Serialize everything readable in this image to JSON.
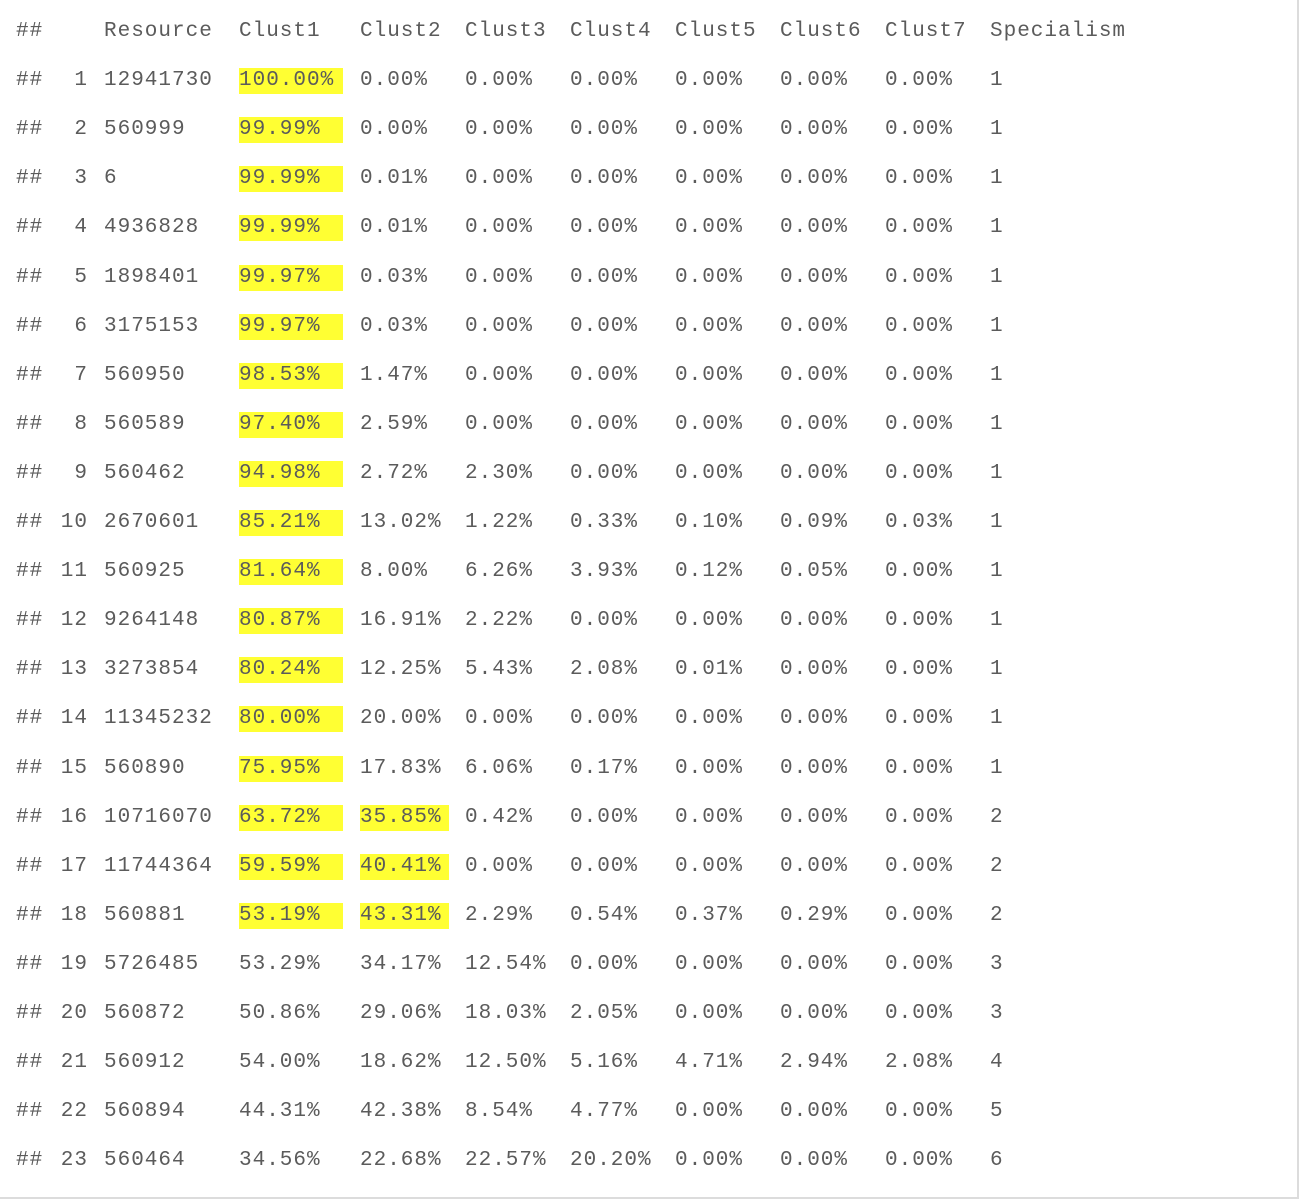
{
  "table": {
    "prefix": "##",
    "columns": [
      "Resource",
      "Clust1",
      "Clust2",
      "Clust3",
      "Clust4",
      "Clust5",
      "Clust6",
      "Clust7",
      "Specialism"
    ],
    "rows": [
      {
        "idx": "1",
        "resource": "12941730",
        "clust": [
          "100.00%",
          "0.00%",
          "0.00%",
          "0.00%",
          "0.00%",
          "0.00%",
          "0.00%"
        ],
        "specialism": "1",
        "highlight": [
          true,
          false
        ]
      },
      {
        "idx": "2",
        "resource": "560999",
        "clust": [
          "99.99%",
          "0.00%",
          "0.00%",
          "0.00%",
          "0.00%",
          "0.00%",
          "0.00%"
        ],
        "specialism": "1",
        "highlight": [
          true,
          false
        ]
      },
      {
        "idx": "3",
        "resource": "6",
        "clust": [
          "99.99%",
          "0.01%",
          "0.00%",
          "0.00%",
          "0.00%",
          "0.00%",
          "0.00%"
        ],
        "specialism": "1",
        "highlight": [
          true,
          false
        ]
      },
      {
        "idx": "4",
        "resource": "4936828",
        "clust": [
          "99.99%",
          "0.01%",
          "0.00%",
          "0.00%",
          "0.00%",
          "0.00%",
          "0.00%"
        ],
        "specialism": "1",
        "highlight": [
          true,
          false
        ]
      },
      {
        "idx": "5",
        "resource": "1898401",
        "clust": [
          "99.97%",
          "0.03%",
          "0.00%",
          "0.00%",
          "0.00%",
          "0.00%",
          "0.00%"
        ],
        "specialism": "1",
        "highlight": [
          true,
          false
        ]
      },
      {
        "idx": "6",
        "resource": "3175153",
        "clust": [
          "99.97%",
          "0.03%",
          "0.00%",
          "0.00%",
          "0.00%",
          "0.00%",
          "0.00%"
        ],
        "specialism": "1",
        "highlight": [
          true,
          false
        ]
      },
      {
        "idx": "7",
        "resource": "560950",
        "clust": [
          "98.53%",
          "1.47%",
          "0.00%",
          "0.00%",
          "0.00%",
          "0.00%",
          "0.00%"
        ],
        "specialism": "1",
        "highlight": [
          true,
          false
        ]
      },
      {
        "idx": "8",
        "resource": "560589",
        "clust": [
          "97.40%",
          "2.59%",
          "0.00%",
          "0.00%",
          "0.00%",
          "0.00%",
          "0.00%"
        ],
        "specialism": "1",
        "highlight": [
          true,
          false
        ]
      },
      {
        "idx": "9",
        "resource": "560462",
        "clust": [
          "94.98%",
          "2.72%",
          "2.30%",
          "0.00%",
          "0.00%",
          "0.00%",
          "0.00%"
        ],
        "specialism": "1",
        "highlight": [
          true,
          false
        ]
      },
      {
        "idx": "10",
        "resource": "2670601",
        "clust": [
          "85.21%",
          "13.02%",
          "1.22%",
          "0.33%",
          "0.10%",
          "0.09%",
          "0.03%"
        ],
        "specialism": "1",
        "highlight": [
          true,
          false
        ]
      },
      {
        "idx": "11",
        "resource": "560925",
        "clust": [
          "81.64%",
          "8.00%",
          "6.26%",
          "3.93%",
          "0.12%",
          "0.05%",
          "0.00%"
        ],
        "specialism": "1",
        "highlight": [
          true,
          false
        ]
      },
      {
        "idx": "12",
        "resource": "9264148",
        "clust": [
          "80.87%",
          "16.91%",
          "2.22%",
          "0.00%",
          "0.00%",
          "0.00%",
          "0.00%"
        ],
        "specialism": "1",
        "highlight": [
          true,
          false
        ]
      },
      {
        "idx": "13",
        "resource": "3273854",
        "clust": [
          "80.24%",
          "12.25%",
          "5.43%",
          "2.08%",
          "0.01%",
          "0.00%",
          "0.00%"
        ],
        "specialism": "1",
        "highlight": [
          true,
          false
        ]
      },
      {
        "idx": "14",
        "resource": "11345232",
        "clust": [
          "80.00%",
          "20.00%",
          "0.00%",
          "0.00%",
          "0.00%",
          "0.00%",
          "0.00%"
        ],
        "specialism": "1",
        "highlight": [
          true,
          false
        ]
      },
      {
        "idx": "15",
        "resource": "560890",
        "clust": [
          "75.95%",
          "17.83%",
          "6.06%",
          "0.17%",
          "0.00%",
          "0.00%",
          "0.00%"
        ],
        "specialism": "1",
        "highlight": [
          true,
          false
        ]
      },
      {
        "idx": "16",
        "resource": "10716070",
        "clust": [
          "63.72%",
          "35.85%",
          "0.42%",
          "0.00%",
          "0.00%",
          "0.00%",
          "0.00%"
        ],
        "specialism": "2",
        "highlight": [
          true,
          true
        ]
      },
      {
        "idx": "17",
        "resource": "11744364",
        "clust": [
          "59.59%",
          "40.41%",
          "0.00%",
          "0.00%",
          "0.00%",
          "0.00%",
          "0.00%"
        ],
        "specialism": "2",
        "highlight": [
          true,
          true
        ]
      },
      {
        "idx": "18",
        "resource": "560881",
        "clust": [
          "53.19%",
          "43.31%",
          "2.29%",
          "0.54%",
          "0.37%",
          "0.29%",
          "0.00%"
        ],
        "specialism": "2",
        "highlight": [
          true,
          true
        ]
      },
      {
        "idx": "19",
        "resource": "5726485",
        "clust": [
          "53.29%",
          "34.17%",
          "12.54%",
          "0.00%",
          "0.00%",
          "0.00%",
          "0.00%"
        ],
        "specialism": "3",
        "highlight": [
          false,
          false
        ]
      },
      {
        "idx": "20",
        "resource": "560872",
        "clust": [
          "50.86%",
          "29.06%",
          "18.03%",
          "2.05%",
          "0.00%",
          "0.00%",
          "0.00%"
        ],
        "specialism": "3",
        "highlight": [
          false,
          false
        ]
      },
      {
        "idx": "21",
        "resource": "560912",
        "clust": [
          "54.00%",
          "18.62%",
          "12.50%",
          "5.16%",
          "4.71%",
          "2.94%",
          "2.08%"
        ],
        "specialism": "4",
        "highlight": [
          false,
          false
        ]
      },
      {
        "idx": "22",
        "resource": "560894",
        "clust": [
          "44.31%",
          "42.38%",
          "8.54%",
          "4.77%",
          "0.00%",
          "0.00%",
          "0.00%"
        ],
        "specialism": "5",
        "highlight": [
          false,
          false
        ]
      },
      {
        "idx": "23",
        "resource": "560464",
        "clust": [
          "34.56%",
          "22.68%",
          "22.57%",
          "20.20%",
          "0.00%",
          "0.00%",
          "0.00%"
        ],
        "specialism": "6",
        "highlight": [
          false,
          false
        ]
      }
    ]
  },
  "colors": {
    "text": "#5b5b5b",
    "highlight": "#ffff33",
    "border": "#dcdcdc"
  }
}
